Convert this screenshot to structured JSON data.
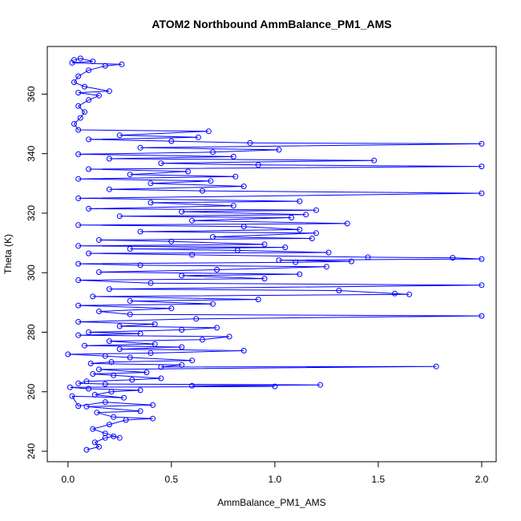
{
  "chart_data": {
    "type": "scatter",
    "title": "ATOM2 Northbound AmmBalance_PM1_AMS",
    "xlabel": "AmmBalance_PM1_AMS",
    "ylabel": "Theta (K)",
    "xlim": [
      -0.1,
      2.07
    ],
    "ylim": [
      236.5,
      376
    ],
    "xticks": [
      0.0,
      0.5,
      1.0,
      1.5,
      2.0
    ],
    "xtick_labels": [
      "0.0",
      "0.5",
      "1.0",
      "1.5",
      "2.0"
    ],
    "yticks": [
      240,
      260,
      280,
      300,
      320,
      340,
      360
    ],
    "ytick_labels": [
      "240",
      "260",
      "280",
      "300",
      "320",
      "340",
      "360"
    ],
    "grid": false,
    "series_color": "#0000ff",
    "markers": "open-circle",
    "connected": true,
    "series": [
      {
        "points": [
          [
            0.09,
            240.5
          ],
          [
            0.15,
            241.5
          ],
          [
            0.13,
            243
          ],
          [
            0.18,
            244.5
          ],
          [
            0.22,
            245
          ],
          [
            0.25,
            244.5
          ],
          [
            0.18,
            246
          ],
          [
            0.12,
            247.5
          ],
          [
            0.2,
            249
          ],
          [
            0.28,
            250.5
          ],
          [
            0.41,
            251
          ],
          [
            0.22,
            251.5
          ],
          [
            0.14,
            253
          ],
          [
            0.35,
            253.5
          ],
          [
            0.09,
            255
          ],
          [
            0.41,
            255.5
          ],
          [
            0.18,
            256.5
          ],
          [
            0.05,
            255.2
          ],
          [
            0.02,
            258.5
          ],
          [
            0.27,
            258
          ],
          [
            0.13,
            259
          ],
          [
            0.21,
            260
          ],
          [
            0.35,
            260.5
          ],
          [
            0.1,
            261
          ],
          [
            0.01,
            261.5
          ],
          [
            1.0,
            261.8
          ],
          [
            0.6,
            262
          ],
          [
            1.22,
            262.3
          ],
          [
            0.18,
            262.6
          ],
          [
            0.05,
            262.8
          ],
          [
            0.09,
            263.5
          ],
          [
            0.31,
            264
          ],
          [
            0.45,
            264.5
          ],
          [
            0.22,
            265.5
          ],
          [
            0.12,
            266
          ],
          [
            0.38,
            266.5
          ],
          [
            0.15,
            267.5
          ],
          [
            1.78,
            268.5
          ],
          [
            0.45,
            268.3
          ],
          [
            0.55,
            269
          ],
          [
            0.11,
            269.5
          ],
          [
            0.21,
            270
          ],
          [
            0.6,
            270.5
          ],
          [
            0.3,
            271.5
          ],
          [
            0.18,
            272
          ],
          [
            0.0,
            272.6
          ],
          [
            0.4,
            273
          ],
          [
            0.85,
            273.8
          ],
          [
            0.25,
            274.3
          ],
          [
            0.55,
            275
          ],
          [
            0.08,
            275.5
          ],
          [
            0.42,
            276
          ],
          [
            0.2,
            277
          ],
          [
            0.65,
            277.5
          ],
          [
            0.78,
            278.5
          ],
          [
            0.05,
            279
          ],
          [
            0.35,
            279.5
          ],
          [
            0.1,
            280
          ],
          [
            0.55,
            280.8
          ],
          [
            0.72,
            281.5
          ],
          [
            0.25,
            282
          ],
          [
            0.42,
            282.7
          ],
          [
            0.05,
            283.5
          ],
          [
            0.62,
            284.5
          ],
          [
            2.0,
            285.5
          ],
          [
            0.3,
            286
          ],
          [
            0.15,
            287
          ],
          [
            0.5,
            288
          ],
          [
            0.05,
            289
          ],
          [
            0.7,
            289.5
          ],
          [
            0.3,
            290.5
          ],
          [
            0.92,
            291
          ],
          [
            0.12,
            292
          ],
          [
            1.65,
            292.7
          ],
          [
            1.58,
            293
          ],
          [
            1.31,
            294
          ],
          [
            0.2,
            294.5
          ],
          [
            2.0,
            295.8
          ],
          [
            0.4,
            296.5
          ],
          [
            0.05,
            297.5
          ],
          [
            0.95,
            298
          ],
          [
            0.55,
            299
          ],
          [
            1.12,
            299.5
          ],
          [
            0.15,
            300.2
          ],
          [
            0.72,
            301
          ],
          [
            1.25,
            302
          ],
          [
            0.35,
            302.5
          ],
          [
            0.05,
            303
          ],
          [
            1.1,
            303.5
          ],
          [
            1.37,
            303.8
          ],
          [
            1.02,
            304.2
          ],
          [
            2.0,
            304.6
          ],
          [
            1.86,
            305
          ],
          [
            1.45,
            305.2
          ],
          [
            0.6,
            306
          ],
          [
            0.1,
            306.5
          ],
          [
            1.26,
            306.8
          ],
          [
            0.82,
            307.5
          ],
          [
            0.3,
            308
          ],
          [
            1.05,
            308.5
          ],
          [
            0.05,
            309
          ],
          [
            0.95,
            309.5
          ],
          [
            0.5,
            310.5
          ],
          [
            0.15,
            311
          ],
          [
            1.18,
            311.5
          ],
          [
            0.7,
            312
          ],
          [
            1.2,
            313.3
          ],
          [
            0.35,
            313.8
          ],
          [
            1.12,
            314.5
          ],
          [
            0.85,
            315.5
          ],
          [
            0.05,
            316
          ],
          [
            1.35,
            316.5
          ],
          [
            0.6,
            317.5
          ],
          [
            1.08,
            318.5
          ],
          [
            0.25,
            319
          ],
          [
            1.15,
            319.5
          ],
          [
            0.55,
            320.5
          ],
          [
            1.2,
            321
          ],
          [
            0.1,
            321.5
          ],
          [
            0.8,
            322.5
          ],
          [
            0.4,
            323.5
          ],
          [
            1.12,
            324
          ],
          [
            0.05,
            325
          ],
          [
            2.0,
            326.7
          ],
          [
            0.65,
            327.5
          ],
          [
            0.2,
            328
          ],
          [
            0.85,
            329
          ],
          [
            0.4,
            330
          ],
          [
            0.69,
            330.8
          ],
          [
            0.05,
            331.5
          ],
          [
            0.81,
            332.3
          ],
          [
            0.3,
            333
          ],
          [
            0.58,
            334
          ],
          [
            0.1,
            334.8
          ],
          [
            2.0,
            335.7
          ],
          [
            0.92,
            336.2
          ],
          [
            0.45,
            336.8
          ],
          [
            1.48,
            337.7
          ],
          [
            0.2,
            338.3
          ],
          [
            0.8,
            339
          ],
          [
            0.05,
            339.8
          ],
          [
            0.7,
            340.5
          ],
          [
            1.02,
            341.3
          ],
          [
            0.35,
            342
          ],
          [
            2.0,
            343.3
          ],
          [
            0.88,
            343.6
          ],
          [
            0.5,
            344.2
          ],
          [
            0.1,
            344.8
          ],
          [
            0.63,
            345.5
          ],
          [
            0.25,
            346.2
          ],
          [
            0.68,
            347.5
          ],
          [
            0.05,
            348
          ],
          [
            0.03,
            350
          ],
          [
            0.06,
            352
          ],
          [
            0.08,
            354
          ],
          [
            0.05,
            356
          ],
          [
            0.1,
            358
          ],
          [
            0.15,
            359.5
          ],
          [
            0.05,
            360.5
          ],
          [
            0.2,
            361
          ],
          [
            0.08,
            362.5
          ],
          [
            0.03,
            364
          ],
          [
            0.05,
            366
          ],
          [
            0.1,
            368
          ],
          [
            0.18,
            369.5
          ],
          [
            0.26,
            370
          ],
          [
            0.02,
            370.5
          ],
          [
            0.12,
            371
          ],
          [
            0.06,
            372
          ],
          [
            0.03,
            371.5
          ]
        ]
      }
    ]
  }
}
